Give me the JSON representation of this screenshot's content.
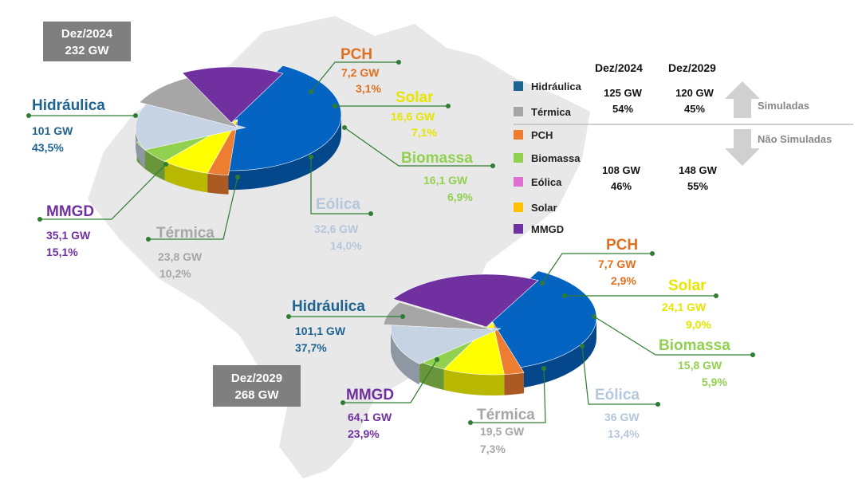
{
  "colors": {
    "Hidráulica": "#0563c1",
    "Térmica": "#a6a6a6",
    "PCH": "#ed7d31",
    "Biomassa": "#92d050",
    "Eólica": "#c5d3e3",
    "Solar": "#ffff00",
    "MMGD": "#7030a0",
    "HidráulicaLabel": "#1f6391",
    "TérmicaLabel": "#a6a6a6",
    "PCHLabel": "#e07020",
    "BiomassaLabel": "#92d050",
    "EólicaLabel": "#b4c7dc",
    "SolarLabel": "#e6e600",
    "MMGDLabel": "#7030a0"
  },
  "chart_data": [
    {
      "type": "pie",
      "title": "Dez/2024",
      "total": "232 GW",
      "slices": [
        {
          "name": "Hidráulica",
          "value": 43.5,
          "gw": "101 GW",
          "pct": "43,5%"
        },
        {
          "name": "PCH",
          "value": 3.1,
          "gw": "7,2 GW",
          "pct": "3,1%"
        },
        {
          "name": "Solar",
          "value": 7.1,
          "gw": "16,6 GW",
          "pct": "7,1%"
        },
        {
          "name": "Biomassa",
          "value": 6.9,
          "gw": "16,1 GW",
          "pct": "6,9%"
        },
        {
          "name": "Eólica",
          "value": 14.0,
          "gw": "32,6 GW",
          "pct": "14,0%"
        },
        {
          "name": "Térmica",
          "value": 10.2,
          "gw": "23,8 GW",
          "pct": "10,2%"
        },
        {
          "name": "MMGD",
          "value": 15.1,
          "gw": "35,1 GW",
          "pct": "15,1%"
        }
      ]
    },
    {
      "type": "pie",
      "title": "Dez/2029",
      "total": "268 GW",
      "slices": [
        {
          "name": "Hidráulica",
          "value": 37.7,
          "gw": "101,1 GW",
          "pct": "37,7%"
        },
        {
          "name": "PCH",
          "value": 2.9,
          "gw": "7,7 GW",
          "pct": "2,9%"
        },
        {
          "name": "Solar",
          "value": 9.0,
          "gw": "24,1 GW",
          "pct": "9,0%"
        },
        {
          "name": "Biomassa",
          "value": 5.9,
          "gw": "15,8 GW",
          "pct": "5,9%"
        },
        {
          "name": "Eólica",
          "value": 13.4,
          "gw": "36 GW",
          "pct": "13,4%"
        },
        {
          "name": "Térmica",
          "value": 7.3,
          "gw": "19,5 GW",
          "pct": "7,3%"
        },
        {
          "name": "MMGD",
          "value": 23.9,
          "gw": "64,1 GW",
          "pct": "23,9%"
        }
      ]
    }
  ],
  "legend": [
    "Hidráulica",
    "Térmica",
    "PCH",
    "Biomassa",
    "Eólica",
    "Solar",
    "MMGD"
  ],
  "table": {
    "headers": [
      "Dez/2024",
      "Dez/2029"
    ],
    "simuladas_label": "Simuladas",
    "nao_simuladas_label": "Não Simuladas",
    "simuladas": [
      {
        "gw": "125 GW",
        "pct": "54%"
      },
      {
        "gw": "120 GW",
        "pct": "45%"
      }
    ],
    "nao_simuladas": [
      {
        "gw": "108 GW",
        "pct": "46%"
      },
      {
        "gw": "148 GW",
        "pct": "55%"
      }
    ]
  }
}
